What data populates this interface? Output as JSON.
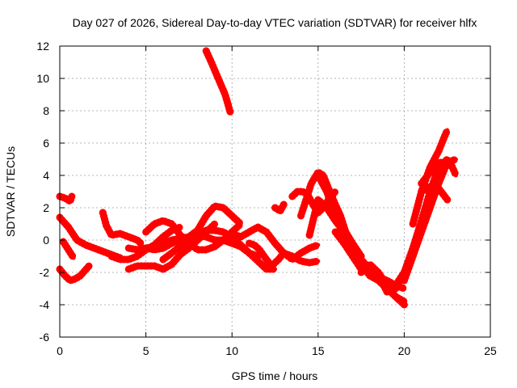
{
  "chart_data": {
    "type": "scatter",
    "title": "Day 027 of 2026, Sidereal Day-to-day VTEC variation (SDTVAR) for receiver hlfx",
    "xlabel": "GPS time / hours",
    "ylabel": "SDTVAR / TECUs",
    "xlim": [
      0,
      25
    ],
    "ylim": [
      -6,
      12
    ],
    "xticks": [
      0,
      5,
      10,
      15,
      20,
      25
    ],
    "yticks": [
      -6,
      -4,
      -2,
      0,
      2,
      4,
      6,
      8,
      10,
      12
    ],
    "grid": true,
    "legend": "none",
    "color": "#ff0000",
    "series": [
      {
        "x": [
          0,
          0.3,
          0.6,
          0.7
        ],
        "y": [
          2.7,
          2.6,
          2.4,
          2.7
        ]
      },
      {
        "x": [
          0,
          0.5,
          1.0,
          1.5,
          2.0,
          2.5,
          3.0,
          3.5
        ],
        "y": [
          1.4,
          0.8,
          0.0,
          -0.3,
          -0.5,
          -0.7,
          -0.9,
          -1.1
        ]
      },
      {
        "x": [
          0.2,
          0.5,
          0.8
        ],
        "y": [
          -0.1,
          -0.6,
          -1.1
        ]
      },
      {
        "x": [
          0,
          0.3,
          0.6,
          0.9,
          1.2,
          1.7
        ],
        "y": [
          -1.8,
          -2.2,
          -2.5,
          -2.4,
          -2.2,
          -1.6
        ]
      },
      {
        "x": [
          2.5,
          2.7,
          3.0,
          3.5,
          4.0,
          4.5,
          4.7
        ],
        "y": [
          1.7,
          0.9,
          0.3,
          0.4,
          0.2,
          0.0,
          -0.2
        ]
      },
      {
        "x": [
          3.0,
          3.5,
          4.0,
          4.5,
          5.0,
          5.5,
          6.0,
          6.5,
          7.0
        ],
        "y": [
          -1.0,
          -1.2,
          -1.2,
          -1.0,
          -0.6,
          -0.3,
          0.2,
          0.6,
          0.8
        ]
      },
      {
        "x": [
          4.0,
          4.5,
          5.0,
          5.5,
          6.0,
          6.5,
          7.0,
          7.5,
          8.0,
          8.5,
          9.0
        ],
        "y": [
          -1.8,
          -1.6,
          -1.6,
          -1.6,
          -1.8,
          -1.5,
          -0.9,
          -0.5,
          0.0,
          0.5,
          1.0
        ]
      },
      {
        "x": [
          5.0,
          5.5,
          6.0,
          6.5,
          7.0,
          7.5,
          8.0,
          8.5,
          9.0,
          9.5,
          10.0,
          10.5
        ],
        "y": [
          -0.5,
          -0.6,
          -0.5,
          -0.2,
          0.0,
          0.2,
          0.6,
          1.5,
          2.1,
          2.0,
          1.5,
          1.0
        ]
      },
      {
        "x": [
          5.0,
          5.5,
          6.0,
          6.5,
          7.0,
          7.5,
          8.0,
          8.5,
          9.0,
          9.5,
          10.0,
          10.5
        ],
        "y": [
          0.5,
          1.0,
          1.2,
          1.0,
          0.3,
          -0.2,
          -0.6,
          -0.6,
          -0.4,
          0.0,
          0.5,
          1.0
        ]
      },
      {
        "x": [
          6.0,
          6.5,
          7.0,
          7.5,
          8.0,
          8.5,
          9.0,
          9.5,
          10.0,
          10.5,
          11.0,
          11.5,
          12.0,
          12.5
        ],
        "y": [
          -1.2,
          -0.8,
          -0.4,
          0.0,
          0.3,
          0.6,
          0.6,
          0.5,
          0.2,
          -0.3,
          -0.8,
          -1.3,
          -1.8,
          -1.8
        ]
      },
      {
        "x": [
          4.0,
          4.5,
          5.0,
          5.5,
          6.0,
          6.5,
          7.0,
          7.5,
          8.0,
          8.5,
          9.0,
          9.5,
          10.0,
          10.5,
          11.0,
          11.5
        ],
        "y": [
          -0.5,
          -0.6,
          -0.5,
          -0.4,
          -0.2,
          0.0,
          0.1,
          0.2,
          0.3,
          0.2,
          0.0,
          0.0,
          -0.2,
          -0.4,
          -0.8,
          -1.0
        ]
      },
      {
        "x": [
          8.5,
          8.8,
          9.2,
          9.6,
          9.9
        ],
        "y": [
          11.7,
          11.0,
          10.0,
          9.0,
          7.9
        ]
      },
      {
        "x": [
          10.0,
          10.5,
          11.0,
          11.5,
          12.0,
          12.5,
          13.0,
          13.5,
          14.0,
          14.5,
          15.0
        ],
        "y": [
          0.4,
          0.2,
          0.5,
          0.8,
          0.5,
          -0.2,
          -0.8,
          -1.2,
          -0.8,
          -0.5,
          -0.3
        ]
      },
      {
        "x": [
          11.0,
          11.3,
          11.6,
          12.0,
          12.3,
          12.7,
          13.0,
          13.5,
          14.0,
          14.5,
          15.0
        ],
        "y": [
          -0.2,
          -0.3,
          -0.6,
          -1.2,
          -1.6,
          -1.2,
          -0.8,
          -1.0,
          -1.3,
          -1.4,
          -1.3
        ]
      },
      {
        "x": [
          12.5,
          12.8,
          13.0
        ],
        "y": [
          2.0,
          1.8,
          2.2
        ]
      },
      {
        "x": [
          13.5,
          13.8,
          14.1,
          14.4,
          14.7,
          15.0,
          15.3,
          15.6,
          16.0
        ],
        "y": [
          2.7,
          3.0,
          3.0,
          2.8,
          2.2,
          1.7,
          2.0,
          2.5,
          3.0
        ]
      },
      {
        "x": [
          14.0,
          14.3,
          14.6,
          15.0,
          15.3,
          15.6,
          16.0,
          16.3,
          16.6,
          17.0,
          17.5
        ],
        "y": [
          1.5,
          2.5,
          3.5,
          4.2,
          4.0,
          3.2,
          2.2,
          1.5,
          0.5,
          -0.2,
          -1.0
        ]
      },
      {
        "x": [
          14.5,
          15.0,
          15.5,
          16.0,
          16.5,
          17.0,
          17.5,
          18.0,
          18.5,
          19.0
        ],
        "y": [
          0.3,
          2.5,
          2.0,
          1.2,
          0.5,
          -0.3,
          -1.2,
          -1.8,
          -2.2,
          -3.2
        ]
      },
      {
        "x": [
          15.0,
          15.5,
          16.0,
          16.5,
          17.0,
          17.5,
          18.0,
          18.5,
          19.0,
          19.5,
          20.0
        ],
        "y": [
          4.0,
          3.0,
          1.5,
          0.5,
          -0.5,
          -1.5,
          -2.2,
          -2.5,
          -3.0,
          -3.5,
          -3.8
        ]
      },
      {
        "x": [
          16.0,
          16.5,
          17.0,
          17.5,
          18.0,
          18.5,
          19.0,
          19.5,
          20.0
        ],
        "y": [
          0.5,
          -0.2,
          -1.0,
          -1.8,
          -2.0,
          -2.3,
          -2.5,
          -2.8,
          -3.0
        ]
      },
      {
        "x": [
          17.5,
          18.0,
          18.5,
          19.0,
          19.5,
          20.0
        ],
        "y": [
          -2.0,
          -1.5,
          -2.0,
          -2.8,
          -3.5,
          -4.0
        ]
      },
      {
        "x": [
          19.0,
          19.5,
          20.0,
          20.5,
          21.0,
          21.5,
          22.0,
          22.5
        ],
        "y": [
          -3.2,
          -2.8,
          -2.0,
          -1.0,
          0.5,
          2.0,
          3.5,
          4.8
        ]
      },
      {
        "x": [
          19.5,
          20.0,
          20.5,
          21.0,
          21.5,
          22.0,
          22.5,
          22.8
        ],
        "y": [
          -3.0,
          -2.0,
          -0.5,
          1.2,
          3.0,
          4.5,
          5.0,
          4.5
        ]
      },
      {
        "x": [
          20.0,
          20.5,
          21.0,
          21.5,
          22.0,
          22.5,
          23.0
        ],
        "y": [
          -2.5,
          -1.0,
          0.8,
          2.5,
          4.0,
          4.8,
          5.0
        ]
      },
      {
        "x": [
          20.5,
          21.0,
          21.5,
          22.0,
          22.3,
          22.5
        ],
        "y": [
          1.0,
          3.0,
          4.5,
          5.5,
          6.3,
          6.8
        ]
      },
      {
        "x": [
          21.0,
          21.5,
          22.0,
          22.5,
          22.8,
          23.0
        ],
        "y": [
          3.5,
          4.2,
          4.8,
          4.8,
          4.5,
          4.0
        ]
      },
      {
        "x": [
          21.0,
          21.5,
          22.0,
          22.5
        ],
        "y": [
          3.0,
          3.3,
          3.2,
          2.5
        ]
      }
    ]
  }
}
